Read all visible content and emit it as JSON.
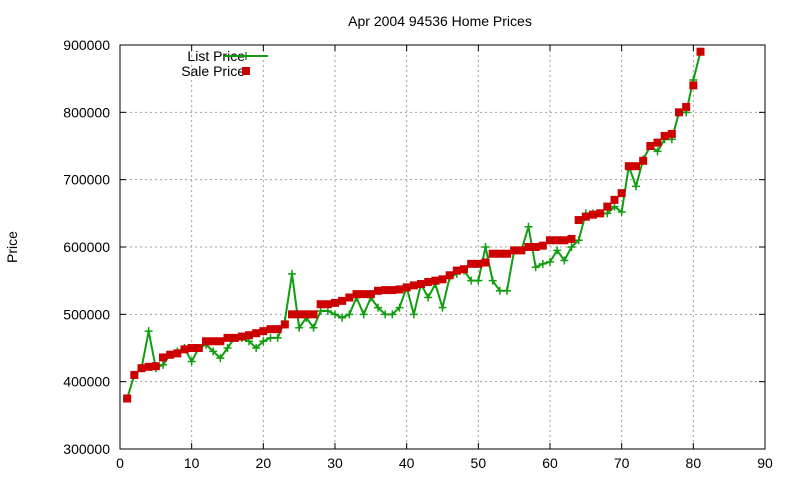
{
  "chart_data": {
    "type": "line",
    "title": "Apr 2004 94536 Home Prices",
    "xlabel": "",
    "ylabel": "Price",
    "xlim": [
      0,
      90
    ],
    "ylim": [
      300000,
      900000
    ],
    "xticks": [
      0,
      10,
      20,
      30,
      40,
      50,
      60,
      70,
      80,
      90
    ],
    "yticks": [
      300000,
      400000,
      500000,
      600000,
      700000,
      800000,
      900000
    ],
    "grid": true,
    "legend_position": "top-left",
    "series": [
      {
        "name": "List Price",
        "style": "line-with-plus-markers",
        "color": "#109e10",
        "points": [
          [
            1,
            375000
          ],
          [
            2,
            410000
          ],
          [
            3,
            420000
          ],
          [
            4,
            475000
          ],
          [
            5,
            420000
          ],
          [
            6,
            425000
          ],
          [
            7,
            440000
          ],
          [
            8,
            445000
          ],
          [
            9,
            450000
          ],
          [
            10,
            430000
          ],
          [
            11,
            450000
          ],
          [
            12,
            455000
          ],
          [
            13,
            445000
          ],
          [
            14,
            435000
          ],
          [
            15,
            450000
          ],
          [
            16,
            465000
          ],
          [
            17,
            465000
          ],
          [
            18,
            460000
          ],
          [
            19,
            450000
          ],
          [
            20,
            460000
          ],
          [
            21,
            465000
          ],
          [
            22,
            465000
          ],
          [
            23,
            490000
          ],
          [
            24,
            560000
          ],
          [
            25,
            480000
          ],
          [
            26,
            495000
          ],
          [
            27,
            480000
          ],
          [
            28,
            505000
          ],
          [
            29,
            505000
          ],
          [
            30,
            500000
          ],
          [
            31,
            495000
          ],
          [
            32,
            500000
          ],
          [
            33,
            525000
          ],
          [
            34,
            500000
          ],
          [
            35,
            525000
          ],
          [
            36,
            510000
          ],
          [
            37,
            500000
          ],
          [
            38,
            500000
          ],
          [
            39,
            510000
          ],
          [
            40,
            540000
          ],
          [
            41,
            500000
          ],
          [
            42,
            545000
          ],
          [
            43,
            525000
          ],
          [
            44,
            545000
          ],
          [
            45,
            510000
          ],
          [
            46,
            555000
          ],
          [
            47,
            560000
          ],
          [
            48,
            565000
          ],
          [
            49,
            550000
          ],
          [
            50,
            550000
          ],
          [
            51,
            600000
          ],
          [
            52,
            550000
          ],
          [
            53,
            535000
          ],
          [
            54,
            535000
          ],
          [
            55,
            595000
          ],
          [
            56,
            595000
          ],
          [
            57,
            630000
          ],
          [
            58,
            570000
          ],
          [
            59,
            575000
          ],
          [
            60,
            578000
          ],
          [
            61,
            595000
          ],
          [
            62,
            580000
          ],
          [
            63,
            600000
          ],
          [
            64,
            610000
          ],
          [
            65,
            650000
          ],
          [
            66,
            650000
          ],
          [
            67,
            650000
          ],
          [
            68,
            650000
          ],
          [
            69,
            660000
          ],
          [
            70,
            652000
          ],
          [
            71,
            720000
          ],
          [
            72,
            690000
          ],
          [
            73,
            730000
          ],
          [
            74,
            750000
          ],
          [
            75,
            742000
          ],
          [
            76,
            760000
          ],
          [
            77,
            760000
          ],
          [
            78,
            800000
          ],
          [
            79,
            800000
          ],
          [
            80,
            848000
          ],
          [
            81,
            890000
          ]
        ]
      },
      {
        "name": "Sale Price",
        "style": "square-markers",
        "color": "#cc0000",
        "points": [
          [
            1,
            375000
          ],
          [
            2,
            410000
          ],
          [
            3,
            420000
          ],
          [
            4,
            422000
          ],
          [
            5,
            423000
          ],
          [
            6,
            436000
          ],
          [
            7,
            440000
          ],
          [
            8,
            442000
          ],
          [
            9,
            448000
          ],
          [
            10,
            450000
          ],
          [
            11,
            450000
          ],
          [
            12,
            460000
          ],
          [
            13,
            460000
          ],
          [
            14,
            460000
          ],
          [
            15,
            465000
          ],
          [
            16,
            465000
          ],
          [
            17,
            467000
          ],
          [
            18,
            469000
          ],
          [
            19,
            472000
          ],
          [
            20,
            475000
          ],
          [
            21,
            478000
          ],
          [
            22,
            478000
          ],
          [
            23,
            485000
          ],
          [
            24,
            500000
          ],
          [
            25,
            500000
          ],
          [
            26,
            500000
          ],
          [
            27,
            500000
          ],
          [
            28,
            515000
          ],
          [
            29,
            515000
          ],
          [
            30,
            517000
          ],
          [
            31,
            520000
          ],
          [
            32,
            525000
          ],
          [
            33,
            530000
          ],
          [
            34,
            530000
          ],
          [
            35,
            530000
          ],
          [
            36,
            535000
          ],
          [
            37,
            536000
          ],
          [
            38,
            536000
          ],
          [
            39,
            537000
          ],
          [
            40,
            540000
          ],
          [
            41,
            543000
          ],
          [
            42,
            545000
          ],
          [
            43,
            548000
          ],
          [
            44,
            550000
          ],
          [
            45,
            552000
          ],
          [
            46,
            558000
          ],
          [
            47,
            565000
          ],
          [
            48,
            567000
          ],
          [
            49,
            575000
          ],
          [
            50,
            575000
          ],
          [
            51,
            577000
          ],
          [
            52,
            590000
          ],
          [
            53,
            590000
          ],
          [
            54,
            590000
          ],
          [
            55,
            595000
          ],
          [
            56,
            595000
          ],
          [
            57,
            600000
          ],
          [
            58,
            600000
          ],
          [
            59,
            602000
          ],
          [
            60,
            610000
          ],
          [
            61,
            610000
          ],
          [
            62,
            610000
          ],
          [
            63,
            612000
          ],
          [
            64,
            640000
          ],
          [
            65,
            645000
          ],
          [
            66,
            648000
          ],
          [
            67,
            650000
          ],
          [
            68,
            660000
          ],
          [
            69,
            670000
          ],
          [
            70,
            680000
          ],
          [
            71,
            720000
          ],
          [
            72,
            720000
          ],
          [
            73,
            728000
          ],
          [
            74,
            750000
          ],
          [
            75,
            755000
          ],
          [
            76,
            765000
          ],
          [
            77,
            768000
          ],
          [
            78,
            800000
          ],
          [
            79,
            808000
          ],
          [
            80,
            840000
          ],
          [
            81,
            890000
          ]
        ]
      }
    ]
  }
}
